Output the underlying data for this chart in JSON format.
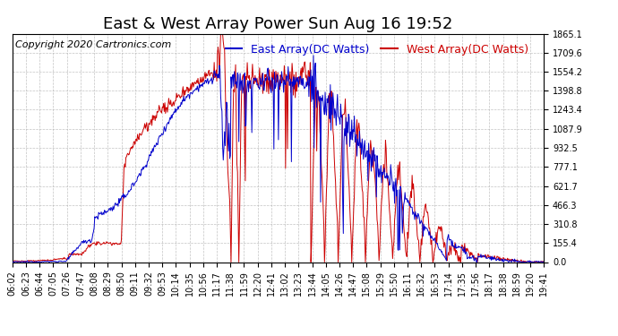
{
  "title": "East & West Array Power Sun Aug 16 19:52",
  "copyright": "Copyright 2020 Cartronics.com",
  "legend_east": "East Array(DC Watts)",
  "legend_west": "West Array(DC Watts)",
  "east_color": "#0000cc",
  "west_color": "#cc0000",
  "background_color": "white",
  "grid_color": "#aaaaaa",
  "ylim": [
    0,
    1865.1
  ],
  "yticks": [
    0.0,
    155.4,
    310.8,
    466.3,
    621.7,
    777.1,
    932.5,
    1087.9,
    1243.4,
    1398.8,
    1554.2,
    1709.6,
    1865.1
  ],
  "ytick_labels": [
    "0.0",
    "155.4",
    "310.8",
    "466.3",
    "621.7",
    "777.1",
    "932.5",
    "1087.9",
    "1243.4",
    "1398.8",
    "1554.2",
    "1709.6",
    "1865.1"
  ],
  "title_fontsize": 13,
  "legend_fontsize": 9,
  "tick_fontsize": 7,
  "copyright_fontsize": 8
}
